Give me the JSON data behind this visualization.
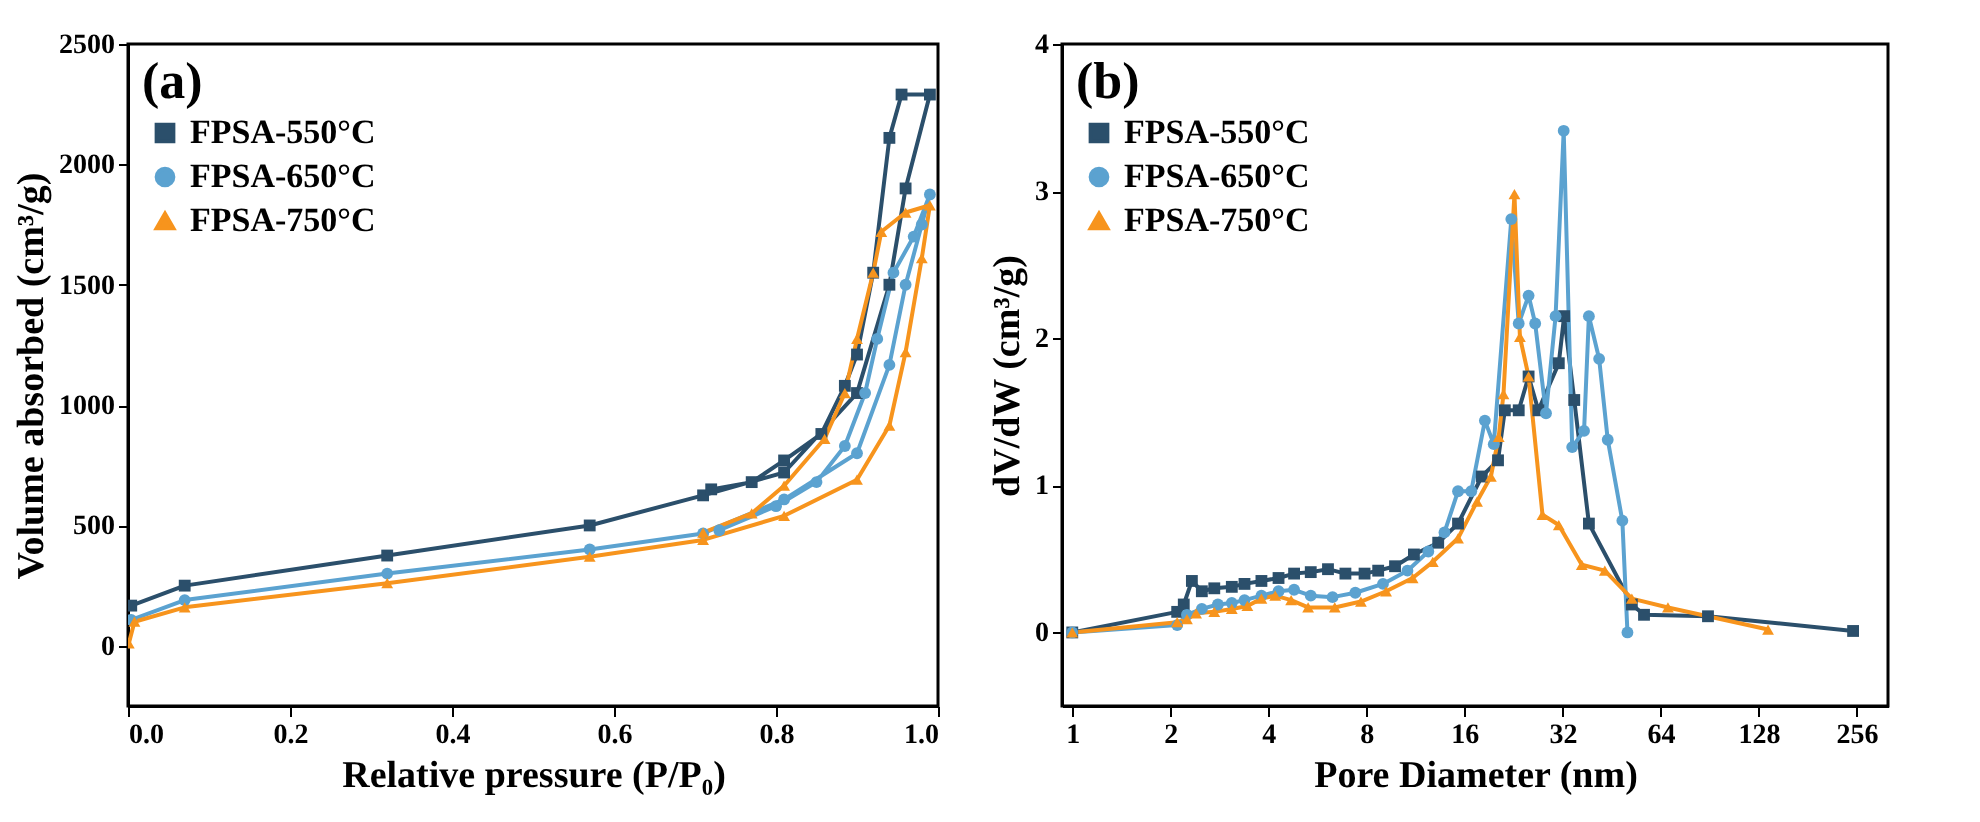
{
  "chart_data": [
    {
      "type": "line",
      "title": "(a)",
      "xlabel": "Relative pressure (P/P₀)",
      "ylabel": "Volume absorbed (cm³/g)",
      "xlim": [
        0,
        1
      ],
      "xticks": [
        {
          "value": 0,
          "label": "0.0"
        },
        0.2,
        0.4,
        0.6,
        0.8,
        {
          "value": 1,
          "label": "1.0"
        }
      ],
      "ylim": [
        -250,
        2500
      ],
      "yticks": [
        0,
        500,
        1000,
        1500,
        2000,
        2500
      ],
      "grid": false,
      "legend": "top left",
      "line_style": "solid",
      "series": [
        {
          "name": "FPSA-550°C",
          "color": "#2b4f6b",
          "marker": "square",
          "x": [
            0.004,
            0.07,
            0.32,
            0.57,
            0.71,
            0.81,
            0.9,
            0.94,
            0.96,
            0.99,
            0.955,
            0.94,
            0.92,
            0.9,
            0.885,
            0.856,
            0.81,
            0.77,
            0.72
          ],
          "values": [
            167,
            250,
            375,
            500,
            625,
            720,
            1050,
            1500,
            1900,
            2290,
            2290,
            2110,
            1550,
            1210,
            1080,
            880,
            770,
            680,
            650
          ]
        },
        {
          "name": "FPSA-650°C",
          "color": "#5ba2d0",
          "marker": "circle",
          "x": [
            0.004,
            0.07,
            0.32,
            0.57,
            0.71,
            0.81,
            0.9,
            0.94,
            0.96,
            0.98,
            0.99,
            0.97,
            0.945,
            0.925,
            0.91,
            0.885,
            0.85,
            0.8,
            0.73
          ],
          "values": [
            108,
            190,
            300,
            400,
            467,
            608,
            800,
            1167,
            1500,
            1750,
            1875,
            1700,
            1550,
            1275,
            1050,
            830,
            680,
            580,
            480
          ]
        },
        {
          "name": "FPSA-750°C",
          "color": "#f7941d",
          "marker": "triangle",
          "x": [
            0.001,
            0.008,
            0.07,
            0.32,
            0.57,
            0.71,
            0.81,
            0.9,
            0.94,
            0.96,
            0.98,
            0.99,
            0.96,
            0.93,
            0.92,
            0.9,
            0.885,
            0.86,
            0.81,
            0.77,
            0.71
          ],
          "values": [
            10,
            100,
            160,
            260,
            370,
            440,
            540,
            690,
            915,
            1220,
            1610,
            1830,
            1800,
            1720,
            1550,
            1275,
            1050,
            860,
            665,
            550,
            470
          ]
        }
      ]
    },
    {
      "type": "line",
      "title": "(b)",
      "xlabel": "Pore Diameter (nm)",
      "ylabel": "dV/dW (cm³/g)",
      "log": "x",
      "xlim": [
        0.93,
        320
      ],
      "xticks": [
        1,
        2,
        4,
        8,
        16,
        32,
        64,
        128,
        256
      ],
      "ylim": [
        -0.5,
        4
      ],
      "yticks": [
        0,
        1,
        2,
        3,
        4
      ],
      "grid": false,
      "legend": "top left",
      "line_style": "solid",
      "series": [
        {
          "name": "FPSA-550°C",
          "color": "#2b4f6b",
          "marker": "square",
          "x": [
            1,
            2.1,
            2.2,
            2.33,
            2.5,
            2.73,
            3.09,
            3.38,
            3.81,
            4.3,
            4.8,
            5.4,
            6.1,
            6.9,
            7.9,
            8.7,
            9.8,
            11.2,
            13.3,
            15.3,
            18.1,
            20.3,
            21.3,
            23.5,
            25.2,
            27,
            31.2,
            32.4,
            34.8,
            38.6,
            52.3,
            57,
            89.6,
            250
          ],
          "values": [
            0,
            0.14,
            0.19,
            0.35,
            0.28,
            0.3,
            0.31,
            0.33,
            0.35,
            0.37,
            0.4,
            0.41,
            0.43,
            0.4,
            0.4,
            0.42,
            0.45,
            0.53,
            0.61,
            0.74,
            1.06,
            1.17,
            1.51,
            1.51,
            1.74,
            1.51,
            1.83,
            2.15,
            1.58,
            0.74,
            0.19,
            0.12,
            0.11,
            0.01
          ]
        },
        {
          "name": "FPSA-650°C",
          "color": "#5ba2d0",
          "marker": "circle",
          "x": [
            1,
            2.1,
            2.25,
            2.5,
            2.8,
            3.09,
            3.38,
            3.81,
            4.3,
            4.8,
            5.4,
            6.3,
            7.4,
            9,
            10.7,
            12.4,
            13.9,
            15.3,
            16.8,
            18.5,
            19.7,
            22.3,
            23.5,
            25.2,
            26.4,
            28.5,
            30.5,
            32.3,
            34.3,
            37.3,
            38.6,
            41.5,
            44.1,
            48.9,
            50.7
          ],
          "values": [
            0,
            0.05,
            0.12,
            0.16,
            0.19,
            0.2,
            0.22,
            0.25,
            0.28,
            0.29,
            0.25,
            0.24,
            0.27,
            0.33,
            0.42,
            0.55,
            0.68,
            0.96,
            0.96,
            1.44,
            1.28,
            2.81,
            2.1,
            2.29,
            2.1,
            1.49,
            2.15,
            3.41,
            1.26,
            1.37,
            2.15,
            1.86,
            1.31,
            0.76,
            0
          ]
        },
        {
          "name": "FPSA-750°C",
          "color": "#f7941d",
          "marker": "triangle",
          "x": [
            1,
            2.1,
            2.25,
            2.4,
            2.73,
            3.09,
            3.45,
            3.81,
            4.2,
            4.7,
            5.3,
            6.4,
            7.7,
            9.2,
            11.1,
            12.8,
            15.3,
            17.5,
            19.3,
            20.4,
            21.1,
            22.8,
            23.7,
            25.2,
            27.8,
            31.2,
            36.7,
            43.2,
            52.3,
            67.5,
            137
          ],
          "values": [
            0,
            0.07,
            0.09,
            0.13,
            0.14,
            0.16,
            0.18,
            0.23,
            0.25,
            0.22,
            0.17,
            0.17,
            0.21,
            0.28,
            0.37,
            0.48,
            0.64,
            0.89,
            1.06,
            1.33,
            1.62,
            2.98,
            2.01,
            1.74,
            0.8,
            0.73,
            0.46,
            0.42,
            0.23,
            0.17,
            0.02
          ]
        }
      ]
    }
  ]
}
